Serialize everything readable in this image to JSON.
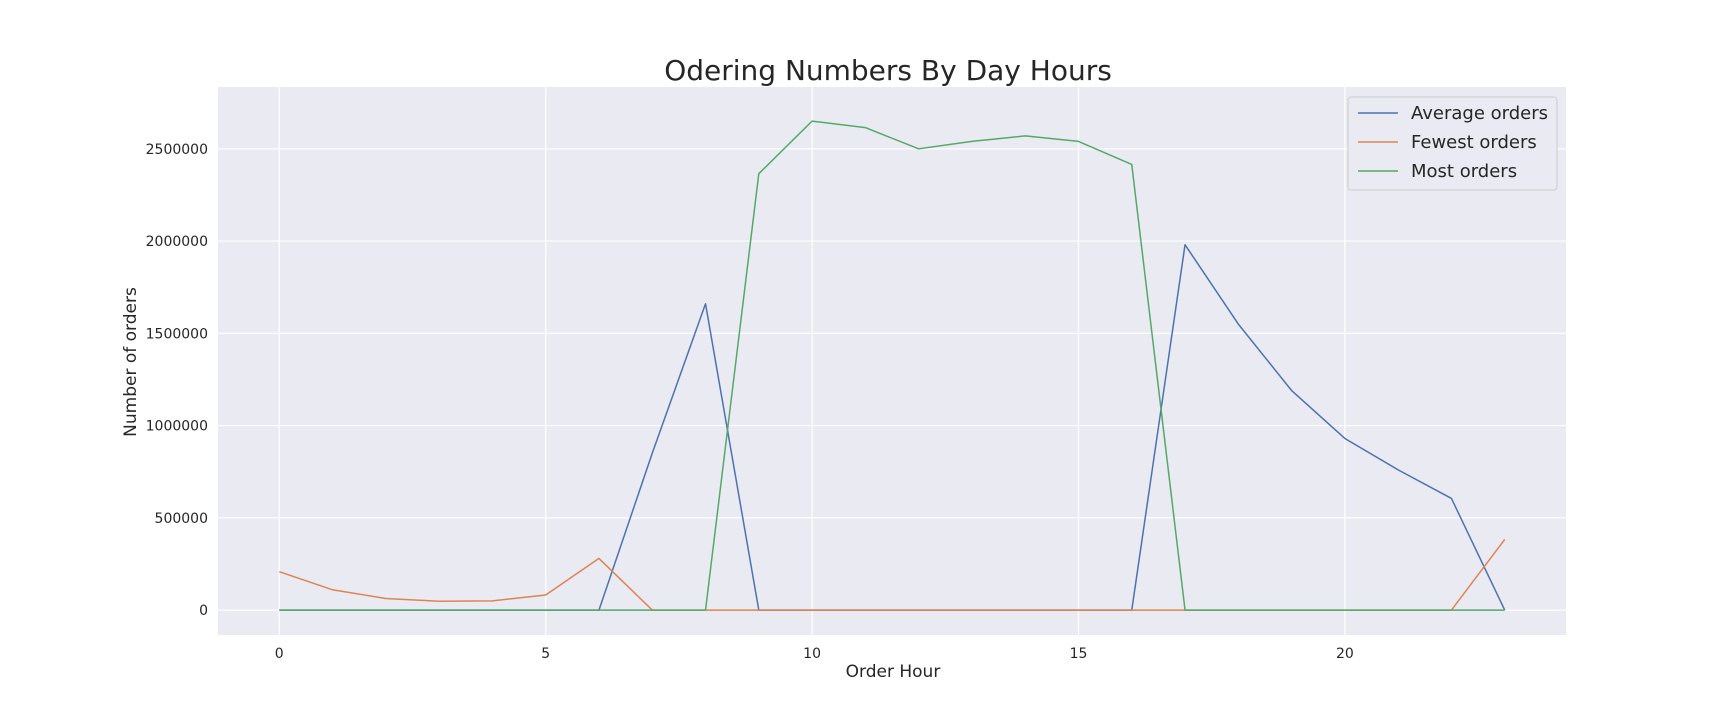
{
  "chart_data": {
    "type": "line",
    "title": "Odering Numbers By Day Hours",
    "xlabel": "Order Hour",
    "ylabel": "Number of orders",
    "xlim": [
      -1.15,
      24.15
    ],
    "ylim": [
      -135000,
      2835000
    ],
    "xticks": [
      0,
      5,
      10,
      15,
      20
    ],
    "yticks": [
      0,
      500000,
      1000000,
      1500000,
      2000000,
      2500000
    ],
    "grid": true,
    "legend_position": "top-right",
    "x": [
      0,
      1,
      2,
      3,
      4,
      5,
      6,
      7,
      8,
      9,
      10,
      11,
      12,
      13,
      14,
      15,
      16,
      17,
      18,
      19,
      20,
      21,
      22,
      23
    ],
    "series": [
      {
        "name": "Average orders",
        "color": "#4c72b0",
        "values": [
          0,
          0,
          0,
          0,
          0,
          0,
          0,
          850000,
          1660000,
          0,
          0,
          0,
          0,
          0,
          0,
          0,
          0,
          1980000,
          1550000,
          1190000,
          930000,
          760000,
          605000,
          0
        ]
      },
      {
        "name": "Fewest orders",
        "color": "#dd8452",
        "values": [
          208000,
          110000,
          63000,
          48000,
          50000,
          82000,
          280000,
          0,
          0,
          0,
          0,
          0,
          0,
          0,
          0,
          0,
          0,
          0,
          0,
          0,
          0,
          0,
          0,
          383000
        ]
      },
      {
        "name": "Most orders",
        "color": "#55a868",
        "values": [
          0,
          0,
          0,
          0,
          0,
          0,
          0,
          0,
          0,
          2365000,
          2650000,
          2615000,
          2500000,
          2540000,
          2570000,
          2540000,
          2415000,
          0,
          0,
          0,
          0,
          0,
          0,
          0
        ]
      }
    ]
  },
  "colors": {
    "plot_background": "#eaeaf2",
    "grid": "#ffffff"
  }
}
